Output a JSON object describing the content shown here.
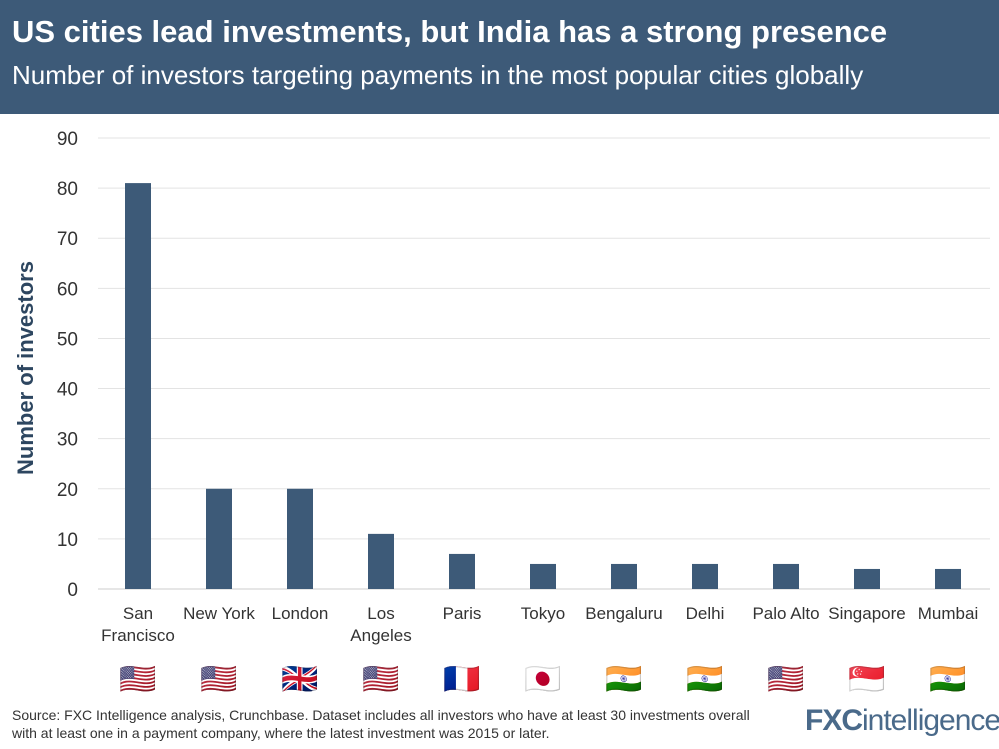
{
  "header": {
    "title": "US cities lead investments, but India has a strong presence",
    "subtitle": "Number of investors targeting payments in the most popular cities globally"
  },
  "chart_data": {
    "type": "bar",
    "title": "US cities lead investments, but India has a strong presence",
    "subtitle": "Number of investors targeting payments in the most popular cities globally",
    "xlabel": "",
    "ylabel": "Number of investors",
    "ylim": [
      0,
      90
    ],
    "yticks": [
      0,
      10,
      20,
      30,
      40,
      50,
      60,
      70,
      80,
      90
    ],
    "grid": true,
    "categories": [
      [
        "San",
        "Francisco"
      ],
      [
        "New York"
      ],
      [
        "London"
      ],
      [
        "Los",
        "Angeles"
      ],
      [
        "Paris"
      ],
      [
        "Tokyo"
      ],
      [
        "Bengaluru"
      ],
      [
        "Delhi"
      ],
      [
        "Palo Alto"
      ],
      [
        "Singapore"
      ],
      [
        "Mumbai"
      ]
    ],
    "flags": [
      "🇺🇸",
      "🇺🇸",
      "🇬🇧",
      "🇺🇸",
      "🇫🇷",
      "🇯🇵",
      "🇮🇳",
      "🇮🇳",
      "🇺🇸",
      "🇸🇬",
      "🇮🇳"
    ],
    "values": [
      81,
      20,
      20,
      11,
      7,
      5,
      5,
      5,
      5,
      4,
      4
    ],
    "bar_color": "#3d5a78"
  },
  "footer": {
    "source": "Source: FXC Intelligence analysis, Crunchbase. Dataset includes all investors who have at least 30 investments overall with at least one in a payment company, where the latest investment was 2015 or later.",
    "logo": "FXCintelligence"
  },
  "colors": {
    "header_bg": "#3d5a78",
    "bar": "#3d5a78",
    "grid": "#e3e3e3"
  }
}
